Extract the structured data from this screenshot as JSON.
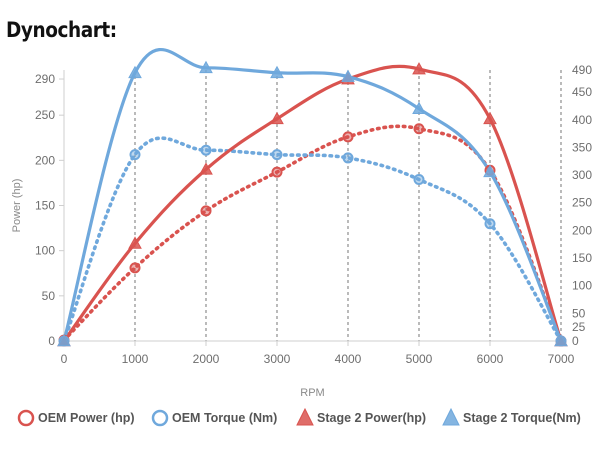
{
  "title": "Dynochart:",
  "chart_data": {
    "type": "line",
    "x": [
      0,
      1000,
      2000,
      3000,
      4000,
      5000,
      6000,
      7000
    ],
    "xlabel": "RPM",
    "ylabel": "Power (hp)",
    "y2label": "",
    "xlim": [
      0,
      7000
    ],
    "ylim": [
      0,
      300
    ],
    "y2lim": [
      0,
      490
    ],
    "xticks": [
      "0",
      "1000",
      "2000",
      "3000",
      "4000",
      "5000",
      "6000",
      "7000"
    ],
    "yticks": [
      "0",
      "50",
      "100",
      "150",
      "200",
      "250",
      "290"
    ],
    "yticks_values": [
      0,
      50,
      100,
      150,
      200,
      250,
      290
    ],
    "y2ticks": [
      "0",
      "25",
      "50",
      "100",
      "150",
      "200",
      "250",
      "300",
      "350",
      "400",
      "450",
      "490"
    ],
    "y2ticks_values": [
      0,
      25,
      50,
      100,
      150,
      200,
      250,
      300,
      350,
      400,
      450,
      490
    ],
    "vertical_grid": true,
    "horizontal_grid": false,
    "legend_position": "bottom",
    "series": [
      {
        "name": "OEM Power (hp)",
        "axis": "left",
        "values": [
          1,
          81,
          144,
          187,
          226,
          235,
          189,
          0
        ],
        "color": "#d9534f",
        "marker": "circle",
        "style": "dotted"
      },
      {
        "name": "OEM Torque (Nm)",
        "axis": "right",
        "values": [
          0,
          337,
          345,
          337,
          331,
          292,
          212,
          0
        ],
        "color": "#6fa8dc",
        "marker": "circle",
        "style": "dotted"
      },
      {
        "name": "Stage 2 Power(hp)",
        "axis": "left",
        "values": [
          0,
          108,
          190,
          246,
          290,
          301,
          246,
          0
        ],
        "color": "#d9534f",
        "marker": "triangle",
        "style": "solid"
      },
      {
        "name": "Stage 2 Torque(Nm)",
        "axis": "right",
        "values": [
          0,
          485,
          494,
          485,
          478,
          420,
          306,
          0
        ],
        "color": "#6fa8dc",
        "marker": "triangle",
        "style": "solid"
      }
    ]
  }
}
